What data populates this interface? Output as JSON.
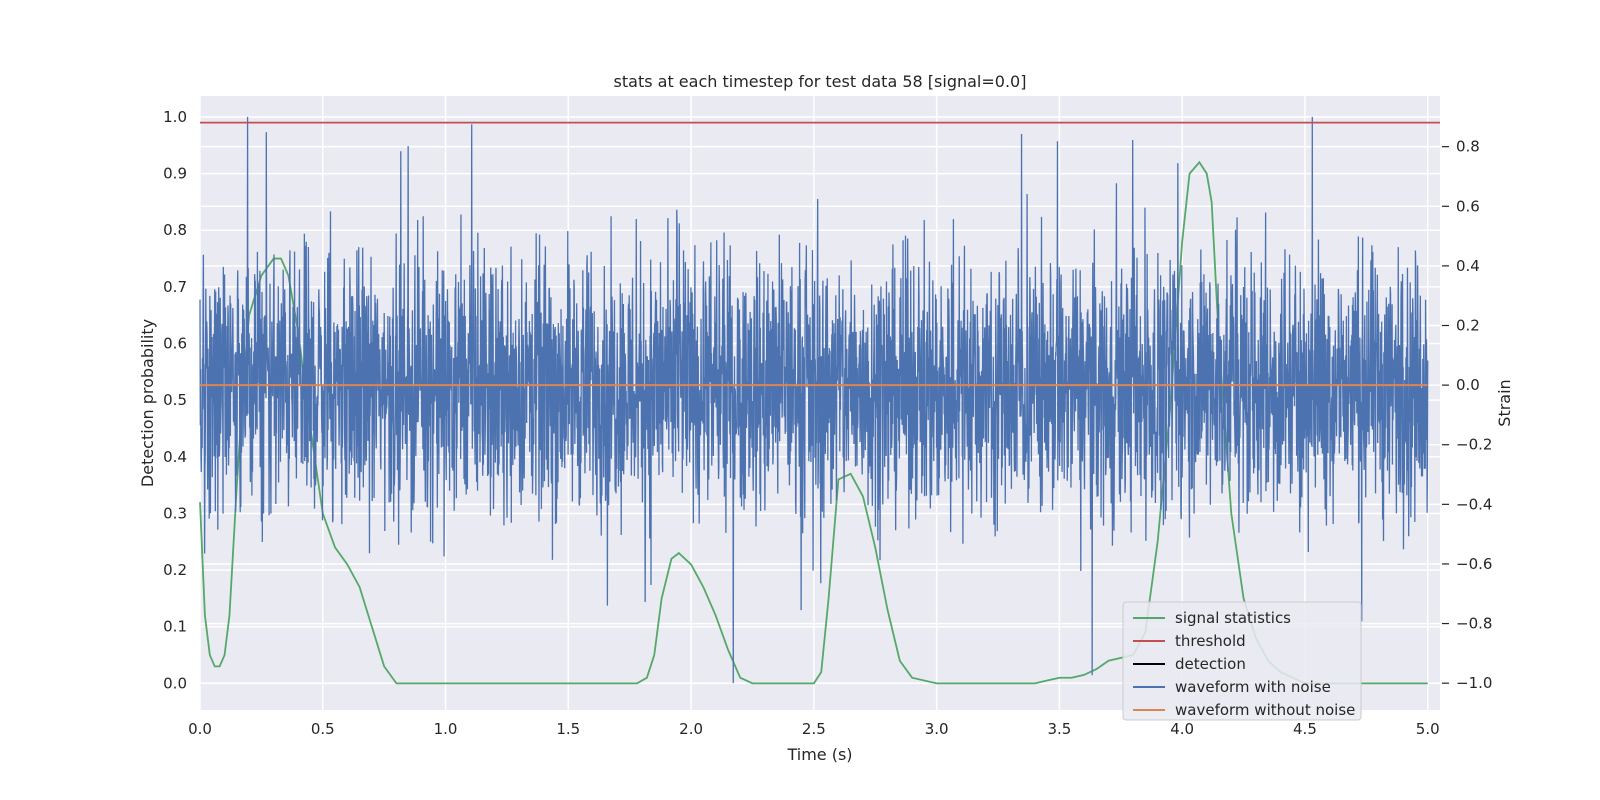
{
  "chart_data": {
    "type": "line",
    "title": "stats at each timestep for test data 58 [signal=0.0]",
    "xlabel": "Time (s)",
    "ylabel_left": "Detection probability",
    "ylabel_right": "Strain",
    "xlim": [
      0.0,
      5.05
    ],
    "ylim_left": [
      -0.047,
      1.037
    ],
    "ylim_right": [
      -1.09,
      0.97
    ],
    "x_ticks": [
      "0.0",
      "0.5",
      "1.0",
      "1.5",
      "2.0",
      "2.5",
      "3.0",
      "3.5",
      "4.0",
      "4.5",
      "5.0"
    ],
    "y_ticks_left": [
      "0.0",
      "0.1",
      "0.2",
      "0.3",
      "0.4",
      "0.5",
      "0.6",
      "0.7",
      "0.8",
      "0.9",
      "1.0"
    ],
    "y_ticks_right": [
      "−1.0",
      "−0.8",
      "−0.6",
      "−0.4",
      "−0.2",
      "0.0",
      "0.2",
      "0.4",
      "0.6",
      "0.8"
    ],
    "grid": true,
    "legend_position": "lower-right",
    "series": [
      {
        "name": "signal statistics",
        "axis": "left",
        "color": "#55a868",
        "x": [
          0.0,
          0.02,
          0.04,
          0.06,
          0.08,
          0.1,
          0.12,
          0.15,
          0.18,
          0.2,
          0.25,
          0.3,
          0.33,
          0.36,
          0.4,
          0.45,
          0.5,
          0.55,
          0.6,
          0.65,
          0.7,
          0.75,
          0.8,
          0.85,
          1.0,
          1.5,
          1.78,
          1.82,
          1.85,
          1.88,
          1.92,
          1.95,
          2.0,
          2.05,
          2.1,
          2.15,
          2.2,
          2.25,
          2.5,
          2.53,
          2.56,
          2.6,
          2.65,
          2.7,
          2.75,
          2.8,
          2.85,
          2.9,
          3.0,
          3.4,
          3.45,
          3.5,
          3.55,
          3.6,
          3.65,
          3.7,
          3.75,
          3.8,
          3.85,
          3.9,
          3.95,
          4.0,
          4.03,
          4.07,
          4.1,
          4.12,
          4.15,
          4.2,
          4.25,
          4.3,
          4.35,
          4.4,
          4.5,
          5.0
        ],
        "y": [
          0.32,
          0.12,
          0.05,
          0.03,
          0.03,
          0.05,
          0.12,
          0.35,
          0.55,
          0.65,
          0.72,
          0.75,
          0.75,
          0.72,
          0.62,
          0.45,
          0.3,
          0.24,
          0.21,
          0.17,
          0.1,
          0.03,
          0.0,
          0.0,
          0.0,
          0.0,
          0.0,
          0.01,
          0.05,
          0.15,
          0.22,
          0.23,
          0.21,
          0.17,
          0.12,
          0.06,
          0.01,
          0.0,
          0.0,
          0.02,
          0.15,
          0.36,
          0.37,
          0.33,
          0.24,
          0.13,
          0.04,
          0.01,
          0.0,
          0.0,
          0.005,
          0.01,
          0.01,
          0.015,
          0.025,
          0.04,
          0.045,
          0.05,
          0.09,
          0.25,
          0.48,
          0.78,
          0.9,
          0.92,
          0.9,
          0.85,
          0.6,
          0.3,
          0.15,
          0.08,
          0.04,
          0.02,
          0.0,
          0.0
        ]
      },
      {
        "name": "threshold",
        "axis": "left",
        "color": "#c44e52",
        "x": [
          0.0,
          5.05
        ],
        "y": [
          0.99,
          0.99
        ]
      },
      {
        "name": "detection",
        "axis": "left",
        "color": "#000000",
        "x": [],
        "y": []
      },
      {
        "name": "waveform with noise",
        "axis": "right",
        "color": "#4c72b0",
        "x": [
          0.0,
          5.0
        ],
        "y_range": [
          -1.0,
          0.9
        ]
      },
      {
        "name": "waveform without noise",
        "axis": "right",
        "color": "#dd8452",
        "x": [
          0.0,
          5.0
        ],
        "y": [
          0.0,
          0.0
        ]
      }
    ]
  }
}
